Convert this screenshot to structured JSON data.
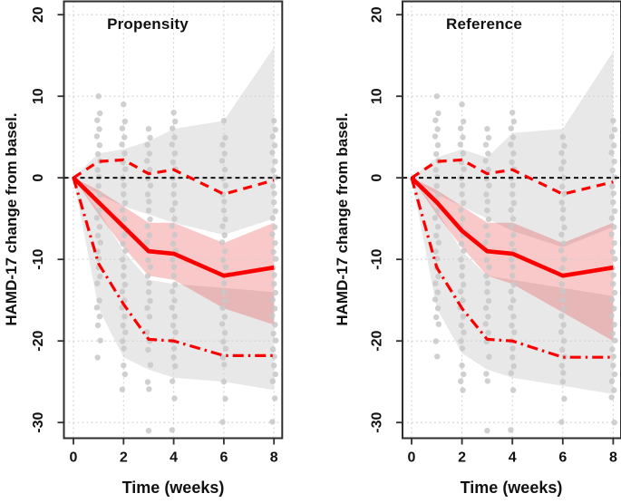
{
  "chart_data": [
    {
      "type": "line",
      "panel_id": "propensity",
      "title": "Propensity",
      "xlabel": "Time (weeks)",
      "ylabel": "HAMD-17 change from basel.",
      "xlim": [
        -0.38,
        8.33
      ],
      "ylim": [
        -31.9,
        21.7
      ],
      "xticks": [
        0,
        2,
        4,
        6,
        8
      ],
      "yticks": [
        20,
        10,
        0,
        -10,
        -20,
        -30
      ],
      "grid": true,
      "x": [
        0,
        1,
        2,
        3,
        4,
        6,
        8
      ],
      "series": [
        {
          "name": "zero-reference-line",
          "style": "dashed",
          "color": "#000000",
          "width": 1.8,
          "dash": "5 4",
          "full_width": true,
          "values": [
            0,
            0,
            0,
            0,
            0,
            0,
            0
          ]
        },
        {
          "name": "upper-limit-line",
          "style": "dashed",
          "color": "#fb0000",
          "width": 3.2,
          "dash": "10 7",
          "values": [
            0,
            2,
            2.2,
            0.5,
            1,
            -2,
            -0.3
          ]
        },
        {
          "name": "lower-limit-line",
          "style": "dashdot",
          "color": "#fb0000",
          "width": 3.2,
          "dash": "12 5 2.5 5",
          "values": [
            0,
            -10.5,
            -15.5,
            -19.8,
            -20,
            -21.8,
            -21.8
          ]
        },
        {
          "name": "mean-change-line",
          "style": "solid",
          "color": "#fb0000",
          "width": 4.6,
          "dash": "",
          "values": [
            0,
            -3,
            -6,
            -9,
            -9.3,
            -12,
            -11
          ]
        }
      ],
      "bands": [
        {
          "name": "upper-gray-band",
          "color": "rgba(125,125,125,0.18)",
          "upper": [
            0,
            3,
            3.5,
            4.5,
            6,
            7,
            16
          ],
          "lower": [
            0,
            -2,
            -3.5,
            -4.5,
            -5.5,
            -7,
            -5
          ]
        },
        {
          "name": "lower-gray-band",
          "color": "rgba(125,125,125,0.18)",
          "upper": [
            0,
            -4,
            -9,
            -12.5,
            -13,
            -13.5,
            -14
          ],
          "lower": [
            0,
            -16,
            -22,
            -23.5,
            -24.5,
            -25,
            -26
          ]
        },
        {
          "name": "mean-ci-band",
          "color": "rgba(230,25,25,0.24)",
          "upper": [
            0,
            -1.5,
            -3.5,
            -5.5,
            -5.5,
            -8,
            -5.5
          ],
          "lower": [
            0,
            -4.5,
            -8.5,
            -12,
            -12.5,
            -16,
            -18
          ]
        }
      ],
      "observations": [
        {
          "week": 1,
          "values": [
            10,
            8,
            7,
            6,
            5,
            4,
            3,
            2,
            1,
            0,
            -1,
            -2,
            -3,
            -4,
            -5,
            -6,
            -7,
            -8,
            -9,
            -10,
            -11,
            -12,
            -13,
            -15,
            -16,
            -17,
            -18,
            -20,
            -22
          ]
        },
        {
          "week": 2,
          "values": [
            9,
            7,
            6,
            5,
            4,
            3,
            2,
            1,
            0,
            -1,
            -2,
            -3,
            -4,
            -5,
            -6,
            -7,
            -8,
            -9,
            -10,
            -11,
            -12,
            -13,
            -14,
            -15,
            -16,
            -17,
            -18,
            -19,
            -20,
            -21,
            -23,
            -24,
            -26
          ]
        },
        {
          "week": 3,
          "values": [
            6,
            5,
            4,
            3,
            2,
            1,
            0,
            -1,
            -2,
            -3,
            -4,
            -5,
            -6,
            -7,
            -8,
            -9,
            -10,
            -11,
            -12,
            -13,
            -14,
            -15,
            -16,
            -17,
            -19,
            -20,
            -21,
            -23,
            -25,
            -26,
            -31
          ]
        },
        {
          "week": 4,
          "values": [
            8,
            7,
            6,
            5,
            4,
            3,
            2,
            1,
            0,
            -1,
            -2,
            -3,
            -4,
            -5,
            -6,
            -7,
            -8,
            -9,
            -10,
            -11,
            -12,
            -13,
            -14,
            -15,
            -16,
            -17,
            -18,
            -19,
            -20,
            -21,
            -22,
            -23,
            -25,
            -27,
            -31
          ]
        },
        {
          "week": 6,
          "values": [
            7,
            5,
            4,
            3,
            2,
            1,
            0,
            -1,
            -2,
            -3,
            -4,
            -5,
            -6,
            -7,
            -8,
            -9,
            -10,
            -11,
            -12,
            -13,
            -14,
            -15,
            -16,
            -17,
            -18,
            -19,
            -20,
            -21,
            -22,
            -23,
            -25,
            -27,
            -30
          ]
        },
        {
          "week": 8,
          "values": [
            7,
            6,
            5,
            4,
            3,
            2,
            1,
            0,
            -1,
            -2,
            -3,
            -4,
            -5,
            -6,
            -7,
            -8,
            -9,
            -10,
            -11,
            -12,
            -13,
            -14,
            -15,
            -16,
            -17,
            -18,
            -19,
            -20,
            -21,
            -22,
            -23,
            -24,
            -25,
            -27,
            -30
          ]
        }
      ],
      "dot_color": "#c8c8c8"
    },
    {
      "type": "line",
      "panel_id": "reference",
      "title": "Reference",
      "xlabel": "Time (weeks)",
      "ylabel": "HAMD-17 change from basel.",
      "xlim": [
        -0.34,
        8.29
      ],
      "ylim": [
        -31.9,
        21.7
      ],
      "xticks": [
        0,
        2,
        4,
        6,
        8
      ],
      "yticks": [
        20,
        10,
        0,
        -10,
        -20,
        -30
      ],
      "grid": true,
      "x": [
        0,
        1,
        2,
        3,
        4,
        6,
        8
      ],
      "series": [
        {
          "name": "zero-reference-line",
          "style": "dashed",
          "color": "#000000",
          "width": 1.8,
          "dash": "5 4",
          "full_width": true,
          "values": [
            0,
            0,
            0,
            0,
            0,
            0,
            0
          ]
        },
        {
          "name": "upper-limit-line",
          "style": "dashed",
          "color": "#fb0000",
          "width": 3.2,
          "dash": "10 7",
          "values": [
            0,
            2,
            2.2,
            0.5,
            1,
            -2,
            -0.5
          ]
        },
        {
          "name": "lower-limit-line",
          "style": "dashdot",
          "color": "#fb0000",
          "width": 3.2,
          "dash": "12 5 2.5 5",
          "values": [
            0,
            -11,
            -16,
            -19.8,
            -20,
            -22,
            -22
          ]
        },
        {
          "name": "mean-change-line",
          "style": "solid",
          "color": "#fb0000",
          "width": 4.6,
          "dash": "",
          "values": [
            0,
            -3,
            -6.5,
            -9,
            -9.3,
            -12,
            -11
          ]
        }
      ],
      "bands": [
        {
          "name": "upper-gray-band",
          "color": "rgba(125,125,125,0.18)",
          "upper": [
            0,
            2.5,
            3.5,
            2.5,
            5.5,
            6,
            15.5
          ],
          "lower": [
            0,
            -2,
            -3.5,
            -5,
            -6.5,
            -8.5,
            -6
          ]
        },
        {
          "name": "lower-gray-band",
          "color": "rgba(125,125,125,0.18)",
          "upper": [
            0,
            -4,
            -9,
            -12,
            -12.5,
            -13.5,
            -14.5
          ],
          "lower": [
            0,
            -16,
            -21.5,
            -23.5,
            -24.5,
            -25.5,
            -26.5
          ]
        },
        {
          "name": "mean-ci-band",
          "color": "rgba(230,25,25,0.24)",
          "upper": [
            0,
            -1.5,
            -3.5,
            -5.5,
            -5.5,
            -8,
            -5.5
          ],
          "lower": [
            0,
            -4.5,
            -8.5,
            -12,
            -13,
            -16.5,
            -20
          ]
        }
      ],
      "observations": [
        {
          "week": 1,
          "values": [
            10,
            8,
            7,
            6,
            5,
            4,
            3,
            2,
            1,
            0,
            -1,
            -2,
            -3,
            -4,
            -5,
            -6,
            -7,
            -8,
            -9,
            -10,
            -11,
            -12,
            -13,
            -14,
            -15,
            -16,
            -17,
            -18,
            -20,
            -22
          ]
        },
        {
          "week": 2,
          "values": [
            9,
            7,
            6,
            5,
            4,
            3,
            2,
            1,
            0,
            -1,
            -2,
            -3,
            -4,
            -5,
            -6,
            -7,
            -8,
            -9,
            -10,
            -11,
            -12,
            -13,
            -14,
            -15,
            -16,
            -17,
            -18,
            -19,
            -20,
            -21,
            -23,
            -24,
            -25,
            -26
          ]
        },
        {
          "week": 3,
          "values": [
            6,
            5,
            4,
            3,
            2,
            1,
            0,
            -1,
            -2,
            -3,
            -4,
            -5,
            -6,
            -7,
            -8,
            -9,
            -10,
            -11,
            -12,
            -13,
            -14,
            -15,
            -16,
            -17,
            -18,
            -19,
            -20,
            -22,
            -24,
            -25,
            -31
          ]
        },
        {
          "week": 4,
          "values": [
            8,
            7,
            6,
            5,
            4,
            3,
            2,
            1,
            0,
            -1,
            -2,
            -3,
            -4,
            -5,
            -6,
            -7,
            -8,
            -9,
            -10,
            -11,
            -12,
            -13,
            -14,
            -15,
            -16,
            -17,
            -18,
            -19,
            -20,
            -21,
            -22,
            -23,
            -24,
            -26,
            -31
          ]
        },
        {
          "week": 6,
          "values": [
            5,
            4,
            3,
            2,
            1,
            0,
            -1,
            -2,
            -3,
            -4,
            -5,
            -6,
            -7,
            -8,
            -9,
            -10,
            -11,
            -12,
            -13,
            -14,
            -15,
            -16,
            -17,
            -18,
            -19,
            -20,
            -21,
            -22,
            -23,
            -24,
            -25,
            -27,
            -30
          ]
        },
        {
          "week": 8,
          "values": [
            7,
            6,
            5,
            4,
            3,
            2,
            1,
            0,
            -1,
            -2,
            -3,
            -4,
            -5,
            -6,
            -7,
            -8,
            -9,
            -10,
            -11,
            -12,
            -13,
            -14,
            -15,
            -16,
            -17,
            -18,
            -19,
            -20,
            -21,
            -22,
            -23,
            -24,
            -25,
            -26,
            -27,
            -30
          ]
        }
      ],
      "dot_color": "#c8c8c8"
    }
  ],
  "colors": {
    "line_red": "#fb0000",
    "band_pink": "rgba(230,25,25,0.24)",
    "band_gray": "rgba(125,125,125,0.18)",
    "dots": "#c8c8c8",
    "grid": "#cfcfcf",
    "frame": "#2e2e2e",
    "text": "#111111"
  }
}
